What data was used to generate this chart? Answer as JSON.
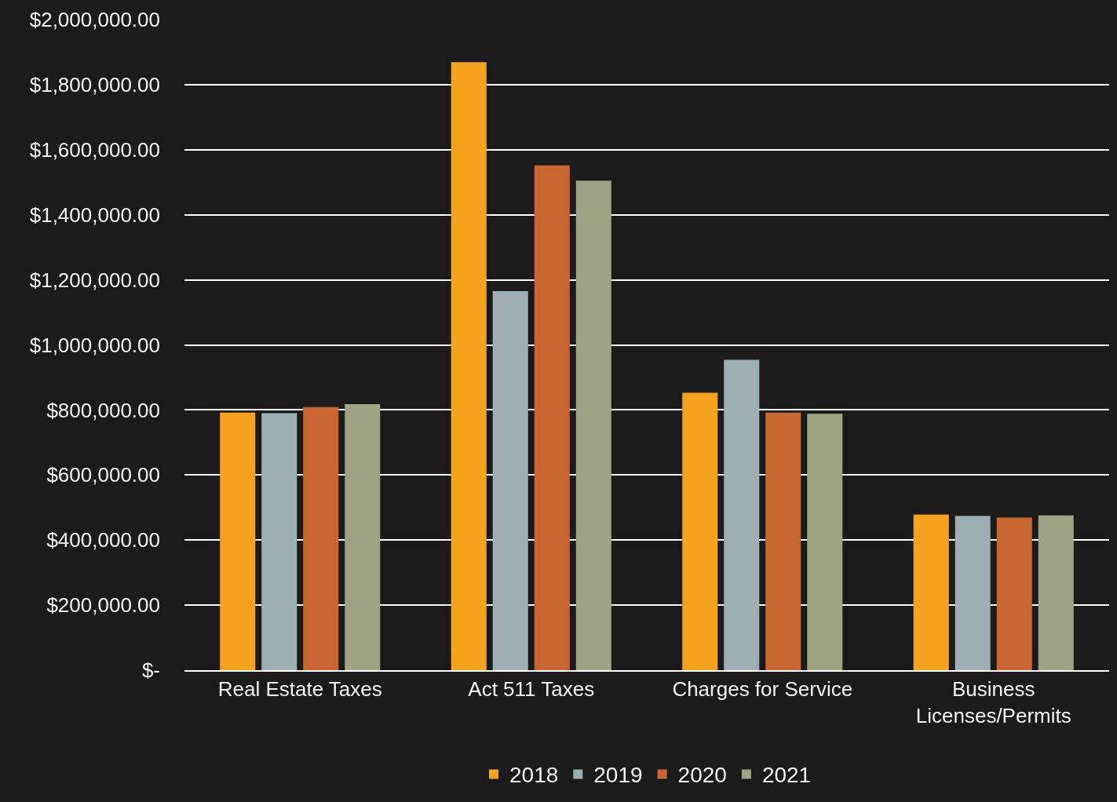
{
  "chart_data": {
    "type": "bar",
    "categories": [
      "Real Estate Taxes",
      "Act 511 Taxes",
      "Charges for Service",
      "Business Licenses/Permits"
    ],
    "series": [
      {
        "name": "2018",
        "color": "#f5a31f",
        "values": [
          792000,
          1869000,
          853000,
          478000
        ]
      },
      {
        "name": "2019",
        "color": "#9eafb3",
        "values": [
          790000,
          1165000,
          954000,
          474000
        ]
      },
      {
        "name": "2020",
        "color": "#c96632",
        "values": [
          809000,
          1552000,
          792000,
          469000
        ]
      },
      {
        "name": "2021",
        "color": "#9ea483",
        "values": [
          818000,
          1505000,
          788000,
          476000
        ]
      }
    ],
    "ylim": [
      0,
      2000000
    ],
    "yticks": [
      {
        "value": 0,
        "label": "$-"
      },
      {
        "value": 200000,
        "label": "$200,000.00"
      },
      {
        "value": 400000,
        "label": "$400,000.00"
      },
      {
        "value": 600000,
        "label": "$600,000.00"
      },
      {
        "value": 800000,
        "label": "$800,000.00"
      },
      {
        "value": 1000000,
        "label": "$1,000,000.00"
      },
      {
        "value": 1200000,
        "label": "$1,200,000.00"
      },
      {
        "value": 1400000,
        "label": "$1,400,000.00"
      },
      {
        "value": 1600000,
        "label": "$1,600,000.00"
      },
      {
        "value": 1800000,
        "label": "$1,800,000.00"
      },
      {
        "value": 2000000,
        "label": "$2,000,000.00"
      }
    ],
    "grid": "y",
    "legend": "bottom"
  }
}
